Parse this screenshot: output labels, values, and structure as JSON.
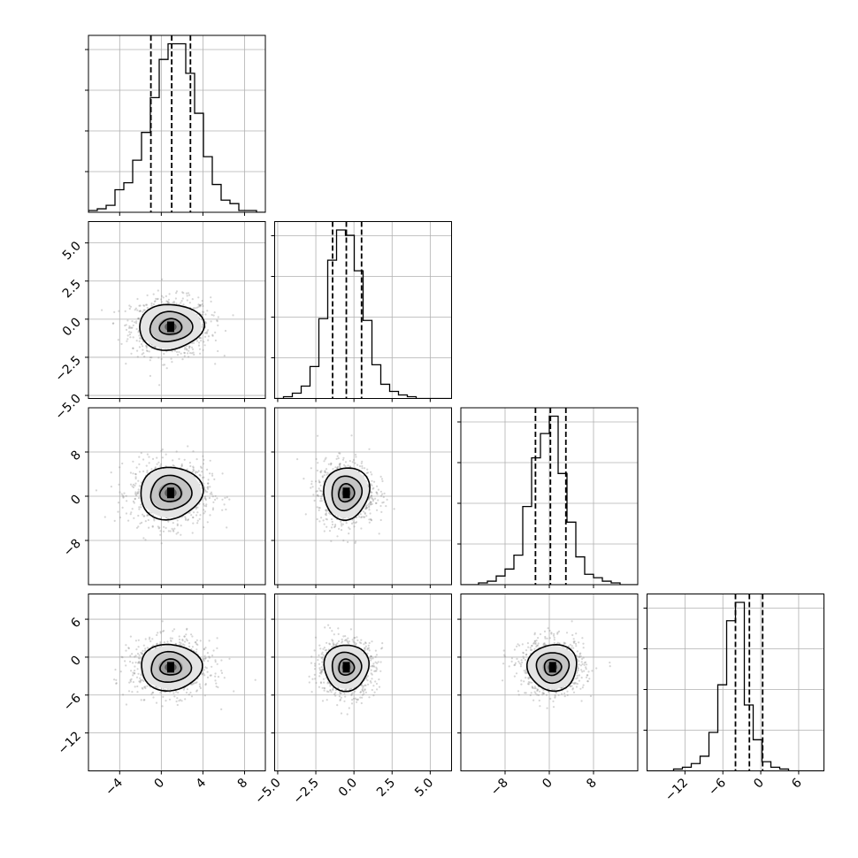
{
  "chart_data": {
    "type": "corner",
    "grid": true,
    "parameters": [
      {
        "range": [
          -7,
          10
        ],
        "ticks": [
          -4,
          0,
          4,
          8
        ],
        "tick_labels": [
          "−4",
          "0",
          "4",
          "8"
        ],
        "quantiles": [
          -1.0,
          1.0,
          2.8
        ],
        "hist_x0": -7,
        "hist_bin": 0.85,
        "hist_counts": [
          1,
          2,
          4,
          13,
          17,
          30,
          46,
          66,
          88,
          97,
          97,
          80,
          57,
          32,
          16,
          7,
          5,
          1,
          1,
          0
        ]
      },
      {
        "range": [
          -5.2,
          6.4
        ],
        "ticks": [
          -5.0,
          -2.5,
          0.0,
          2.5,
          5.0
        ],
        "tick_labels": [
          "−5.0",
          "−2.5",
          "0.0",
          "2.5",
          "5.0"
        ],
        "quantiles": [
          -1.4,
          -0.5,
          0.5
        ],
        "hist_x0": -5.2,
        "hist_bin": 0.58,
        "hist_counts": [
          0,
          1,
          3,
          7,
          18,
          45,
          78,
          95,
          92,
          72,
          44,
          19,
          8,
          4,
          2,
          1,
          0,
          0,
          0,
          0
        ]
      },
      {
        "range": [
          -16,
          16
        ],
        "ticks": [
          -8,
          0,
          8
        ],
        "tick_labels": [
          "−8",
          "0",
          "8"
        ],
        "quantiles": [
          -2.5,
          0.2,
          3.0
        ],
        "hist_x0": -16,
        "hist_bin": 1.6,
        "hist_counts": [
          0,
          0,
          1,
          2,
          5,
          9,
          17,
          45,
          73,
          87,
          97,
          64,
          36,
          16,
          6,
          4,
          2,
          1,
          0,
          0
        ]
      },
      {
        "range": [
          -18,
          10
        ],
        "ticks": [
          -12,
          -6,
          0,
          6
        ],
        "tick_labels": [
          "−12",
          "−6",
          "0",
          "6"
        ],
        "quantiles": [
          -4.0,
          -1.8,
          0.3
        ],
        "hist_x0": -18,
        "hist_bin": 1.4,
        "hist_counts": [
          0,
          0,
          0,
          1,
          2,
          4,
          8,
          21,
          47,
          82,
          92,
          36,
          17,
          5,
          2,
          1,
          0,
          0,
          0,
          0
        ]
      }
    ],
    "y_ticks": {
      "1": {
        "ticks": [
          -5.0,
          -2.5,
          0.0,
          2.5,
          5.0
        ],
        "labels": [
          "−5.0",
          "−2.5",
          "0.0",
          "2.5",
          "5.0"
        ]
      },
      "2": {
        "ticks": [
          -8,
          0,
          8
        ],
        "labels": [
          "−8",
          "0",
          "8"
        ]
      },
      "3": {
        "ticks": [
          -12,
          -6,
          0,
          6
        ],
        "labels": [
          "−12",
          "−6",
          "0",
          "6"
        ]
      }
    },
    "distributions": [
      {
        "mean": 0.9,
        "sd": 1.9
      },
      {
        "mean": -0.5,
        "sd": 0.95
      },
      {
        "mean": 0.6,
        "sd": 2.9
      },
      {
        "mean": -1.6,
        "sd": 2.2
      }
    ]
  }
}
